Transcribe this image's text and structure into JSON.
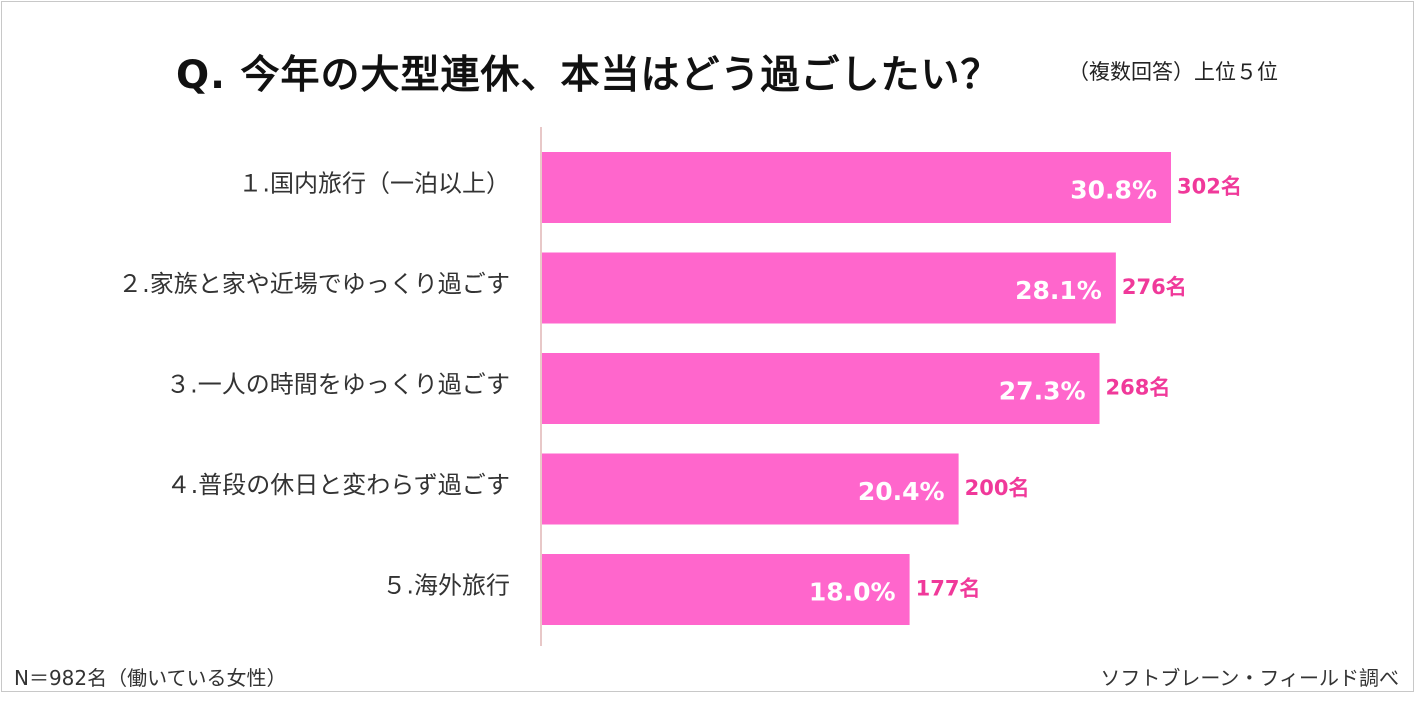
{
  "header": {
    "title": "Q.  今年の大型連休、本当はどう過ごしたい？",
    "subtitle": "（複数回答）上位５位"
  },
  "footer": {
    "sample_note": "N＝982名（働いている女性）",
    "source": "ソフトブレーン・フィールド調べ"
  },
  "colors": {
    "bar": "#ff66cc",
    "count_text": "#f0399a",
    "axis": "#e8c8c8"
  },
  "chart_data": {
    "type": "bar",
    "orientation": "horizontal",
    "categories": [
      "１.国内旅行（一泊以上）",
      "２.家族と家や近場でゆっくり過ごす",
      "３.一人の時間をゆっくり過ごす",
      "４.普段の休日と変わらず過ごす",
      "５.海外旅行"
    ],
    "values": [
      30.8,
      28.1,
      27.3,
      20.4,
      18.0
    ],
    "value_labels": [
      "30.8%",
      "28.1%",
      "27.3%",
      "20.4%",
      "18.0%"
    ],
    "counts": [
      "302名",
      "276名",
      "268名",
      "200名",
      "177名"
    ],
    "xlim": [
      0,
      30.8
    ],
    "grid": false,
    "legend": "none"
  }
}
